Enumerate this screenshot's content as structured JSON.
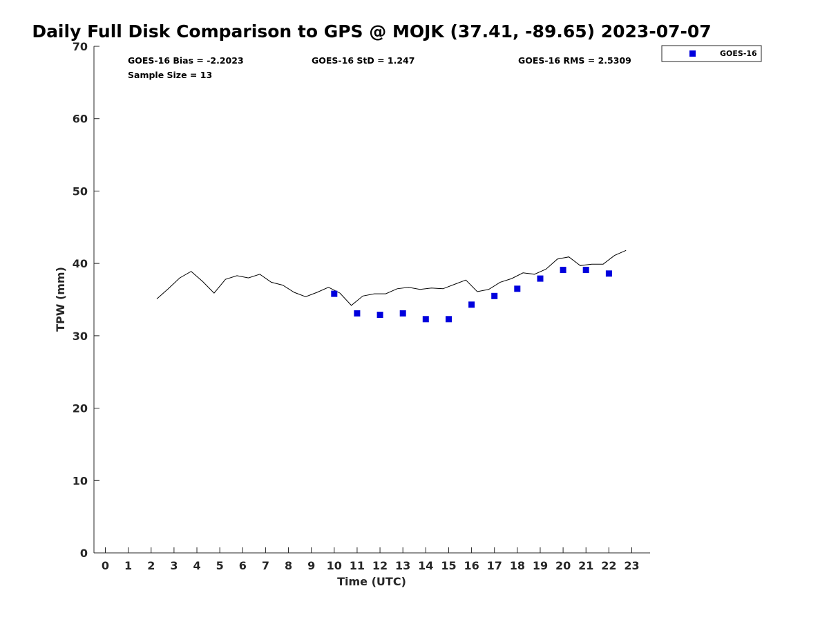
{
  "chart_data": {
    "type": "scatter",
    "title": "Daily Full Disk Comparison to GPS @ MOJK (37.41, -89.65) 2023-07-07",
    "xlabel": "Time (UTC)",
    "ylabel": "TPW (mm)",
    "xlim": [
      -0.5,
      23.8
    ],
    "ylim": [
      0,
      70
    ],
    "xticks": [
      0,
      1,
      2,
      3,
      4,
      5,
      6,
      7,
      8,
      9,
      10,
      11,
      12,
      13,
      14,
      15,
      16,
      17,
      18,
      19,
      20,
      21,
      22,
      23
    ],
    "yticks": [
      0,
      10,
      20,
      30,
      40,
      50,
      60,
      70
    ],
    "grid": false,
    "legend_position": "top-right outside",
    "stats": {
      "bias": "GOES-16 Bias = -2.2023",
      "std": "GOES-16 StD = 1.247",
      "rms": "GOES-16 RMS = 2.5309",
      "sample": "Sample Size = 13"
    },
    "series": [
      {
        "type": "line",
        "color": "#000000",
        "x": [
          2.25,
          2.75,
          3.25,
          3.75,
          4.25,
          4.75,
          5.25,
          5.75,
          6.25,
          6.75,
          7.25,
          7.75,
          8.25,
          8.75,
          9.25,
          9.75,
          10.25,
          10.75,
          11.25,
          11.75,
          12.25,
          12.75,
          13.25,
          13.75,
          14.25,
          14.75,
          15.25,
          15.75,
          16.25,
          16.75,
          17.25,
          17.75,
          18.25,
          18.75,
          19.25,
          19.75,
          20.25,
          20.75,
          21.25,
          21.75,
          22.25,
          22.75
        ],
        "y": [
          35.1,
          36.5,
          38.0,
          38.9,
          37.5,
          35.9,
          37.8,
          38.3,
          38.0,
          38.5,
          37.4,
          37.0,
          36.0,
          35.4,
          36.0,
          36.7,
          35.9,
          34.2,
          35.5,
          35.8,
          35.8,
          36.5,
          36.7,
          36.4,
          36.6,
          36.5,
          37.1,
          37.7,
          36.1,
          36.4,
          37.4,
          37.9,
          38.7,
          38.5,
          39.2,
          40.6,
          40.9,
          39.7,
          39.9,
          39.9,
          41.1,
          41.8
        ]
      },
      {
        "type": "scatter",
        "name": "GOES-16",
        "color": "#0000dd",
        "x": [
          10,
          11,
          12,
          13,
          14,
          15,
          16,
          17,
          18,
          19,
          20,
          21,
          22
        ],
        "y": [
          35.8,
          33.1,
          32.9,
          33.1,
          32.3,
          32.3,
          34.3,
          35.5,
          36.5,
          37.9,
          39.1,
          39.1,
          38.6
        ]
      }
    ]
  }
}
